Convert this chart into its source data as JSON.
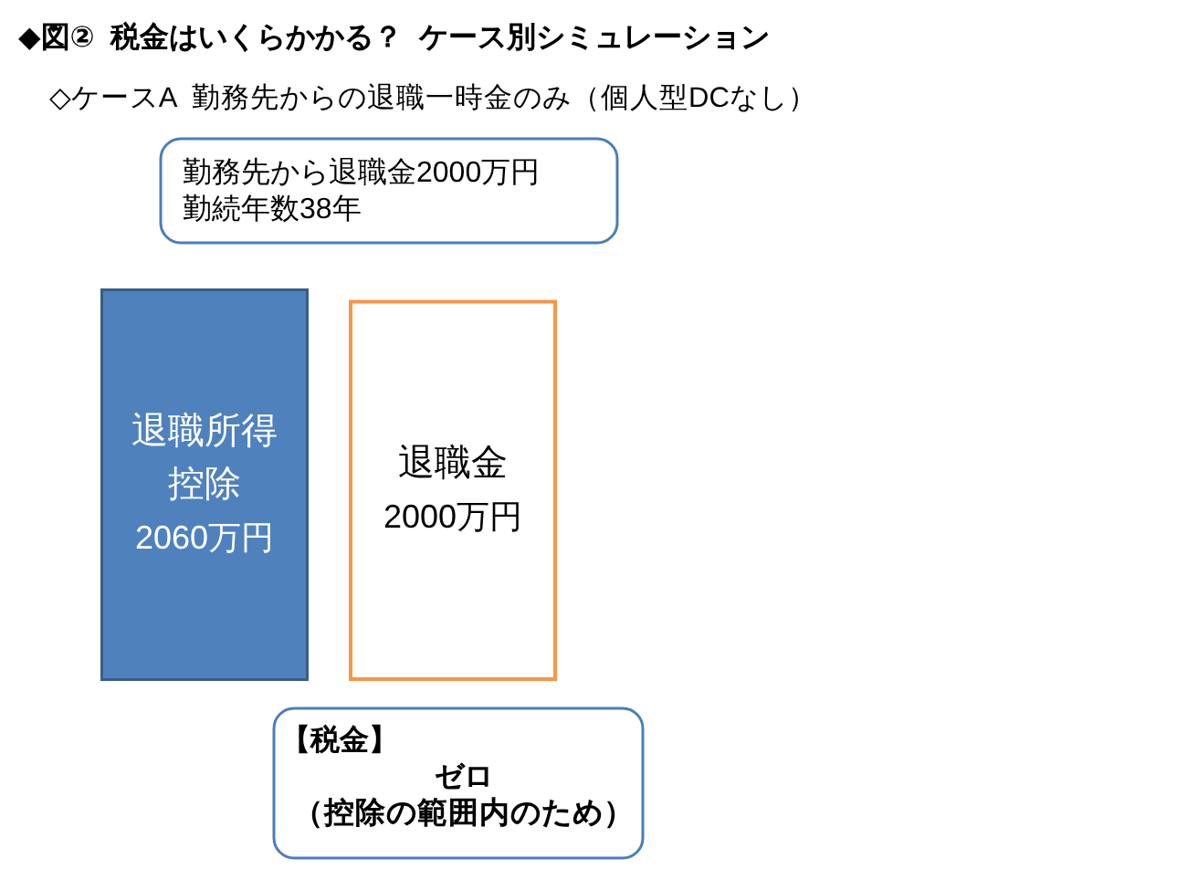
{
  "chart_data": {
    "type": "bar",
    "title": "◆図②  税金はいくらかかる？  ケース別シミュレーション",
    "subtitle": "◇ケースA  勤務先からの退職一時金のみ（個人型DCなし）",
    "categories": [
      "退職所得控除",
      "退職金"
    ],
    "values": [
      2060,
      2000
    ],
    "value_labels": [
      "2060万円",
      "2000万円"
    ],
    "colors": [
      "#4f81bd",
      "#f79646"
    ],
    "annotations": [
      "勤務先から退職金2000万円",
      "勤続年数38年",
      "【税金】",
      "ゼロ",
      "（控除の範囲内のため）"
    ]
  }
}
